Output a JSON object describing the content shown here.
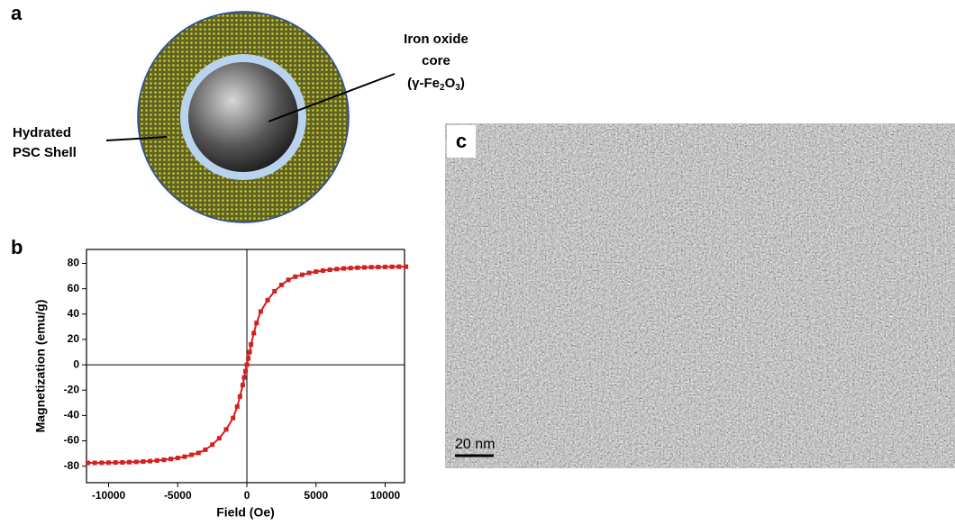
{
  "panel_labels": [
    "a",
    "b",
    "c"
  ],
  "diagram": {
    "core_label": [
      "Iron oxide",
      "core"
    ],
    "core_formula": [
      "(γ-Fe",
      "2",
      "O",
      "3",
      ")"
    ],
    "shell_label": [
      "Hydrated",
      "PSC Shell"
    ]
  },
  "micrograph": {
    "scale_bar": "20 nm"
  },
  "chart_data": {
    "type": "line",
    "x_label": "Field (Oe)",
    "y_label": "Magnetization (emu/g)",
    "xlim": [
      -11600,
      11400
    ],
    "ylim": [
      -93,
      91
    ],
    "xticks": [
      -10000,
      -5000,
      0,
      5000,
      10000
    ],
    "yticks": [
      -80,
      -60,
      -40,
      -20,
      0,
      20,
      40,
      60,
      80
    ],
    "series": [
      {
        "color": "#d42020",
        "x": [
          -11500,
          -11000,
          -10500,
          -10000,
          -9500,
          -9000,
          -8500,
          -8000,
          -7500,
          -7000,
          -6500,
          -6000,
          -5500,
          -5000,
          -4500,
          -4000,
          -3500,
          -3000,
          -2500,
          -2000,
          -1500,
          -1000,
          -700,
          -500,
          -300,
          -200,
          -100,
          0,
          100,
          200,
          300,
          500,
          700,
          1000,
          1500,
          2000,
          2500,
          3000,
          3500,
          4000,
          4500,
          5000,
          5500,
          6000,
          6500,
          7000,
          7500,
          8000,
          8500,
          9000,
          9500,
          10000,
          10500,
          11000,
          11500
        ],
        "values": [
          -77.4,
          -77.4,
          -77.3,
          -77.2,
          -77.1,
          -77,
          -76.8,
          -76.6,
          -76.3,
          -76,
          -75.5,
          -75,
          -74.3,
          -73.5,
          -72.5,
          -71,
          -69.5,
          -67,
          -63,
          -58,
          -51,
          -42,
          -33,
          -25,
          -16,
          -10,
          -5,
          0,
          5,
          10,
          16,
          25,
          33,
          42,
          51,
          58,
          63,
          67,
          69.5,
          71,
          72.5,
          73.5,
          74.3,
          75,
          75.5,
          76,
          76.3,
          76.6,
          76.8,
          77,
          77.1,
          77.2,
          77.3,
          77.4,
          77.4
        ]
      }
    ]
  }
}
